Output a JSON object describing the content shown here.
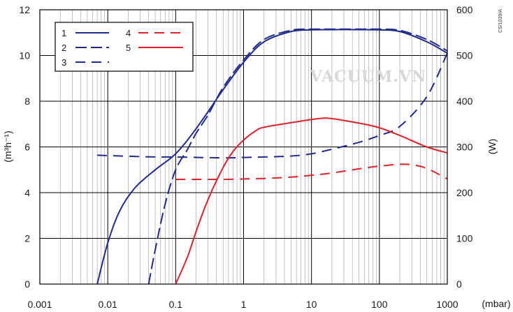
{
  "chart_data": {
    "type": "line",
    "x_scale": "log",
    "xlim": [
      0.001,
      1000
    ],
    "x_ticks": [
      0.001,
      0.01,
      0.1,
      1,
      10,
      100,
      1000
    ],
    "x_tick_labels": [
      "0.001",
      "0.01",
      "0.1",
      "1",
      "10",
      "100",
      "1000"
    ],
    "x_unit_label": "(mbar)",
    "ylim_left": [
      0,
      12
    ],
    "y_ticks_left": [
      "0",
      "2",
      "4",
      "6",
      "8",
      "10",
      "12"
    ],
    "ylabel_left": "(m³h⁻¹)",
    "ylim_right": [
      0,
      600
    ],
    "y_ticks_right": [
      "0",
      "100",
      "200",
      "300",
      "400",
      "500",
      "600"
    ],
    "ylabel_right": "(W)",
    "grid": true,
    "legend_position": "top-left",
    "code_label": "CS/1039/A",
    "watermark": "VACUUM.VN",
    "series": [
      {
        "name": "1",
        "axis": "left",
        "color": "#1f2a8c",
        "style": "solid",
        "x": [
          0.007,
          0.01,
          0.015,
          0.025,
          0.05,
          0.1,
          0.2,
          0.5,
          1,
          2,
          5,
          10,
          20,
          50,
          100,
          200,
          500,
          1000
        ],
        "y": [
          0,
          1.8,
          3.2,
          4.2,
          5.0,
          5.7,
          6.8,
          8.5,
          9.7,
          10.6,
          11.05,
          11.12,
          11.13,
          11.13,
          11.12,
          11.05,
          10.6,
          10.1
        ]
      },
      {
        "name": "2",
        "axis": "left",
        "color": "#1f2a8c",
        "style": "longdash",
        "x": [
          0.04,
          0.05,
          0.07,
          0.1,
          0.15,
          0.2,
          0.3,
          0.5,
          1,
          2,
          5,
          10,
          20,
          50,
          100,
          200,
          500,
          1000
        ],
        "y": [
          0,
          1.5,
          3.5,
          5.0,
          5.9,
          6.6,
          7.4,
          8.6,
          9.8,
          10.7,
          11.1,
          11.15,
          11.15,
          11.15,
          11.15,
          11.1,
          10.7,
          10.2
        ]
      },
      {
        "name": "3",
        "axis": "right",
        "color": "#1f2a8c",
        "style": "dash",
        "x": [
          0.007,
          0.01,
          0.05,
          0.1,
          0.5,
          1,
          2,
          5,
          10,
          20,
          50,
          100,
          200,
          500,
          1000
        ],
        "y": [
          282,
          281,
          278,
          278,
          276,
          277,
          278,
          280,
          285,
          295,
          310,
          325,
          345,
          410,
          505
        ]
      },
      {
        "name": "4",
        "axis": "right",
        "color": "#e0202a",
        "style": "dash",
        "x": [
          0.1,
          0.2,
          0.5,
          1,
          2,
          5,
          10,
          20,
          50,
          100,
          200,
          300,
          500,
          1000
        ],
        "y": [
          229,
          229,
          229,
          230,
          231,
          234,
          238,
          243,
          252,
          258,
          262,
          261,
          253,
          230
        ]
      },
      {
        "name": "5",
        "axis": "right",
        "color": "#e0202a",
        "style": "solid",
        "x": [
          0.1,
          0.15,
          0.2,
          0.3,
          0.5,
          0.7,
          1,
          1.5,
          2,
          5,
          10,
          15,
          20,
          50,
          100,
          200,
          500,
          1000
        ],
        "y": [
          0,
          60,
          115,
          185,
          255,
          290,
          315,
          335,
          343,
          353,
          360,
          363,
          362,
          352,
          342,
          325,
          300,
          287
        ]
      }
    ]
  }
}
